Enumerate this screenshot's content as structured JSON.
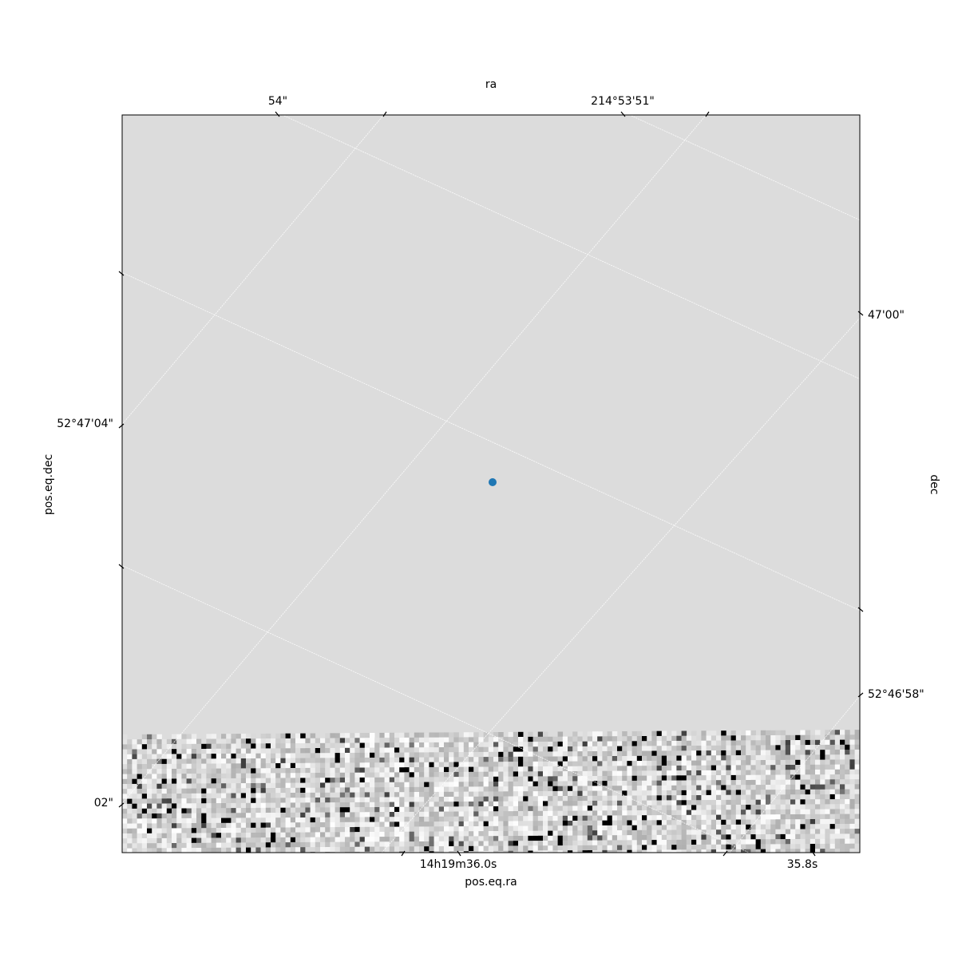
{
  "chart_data": {
    "type": "scatter",
    "title": "",
    "frame": "wcs-image",
    "bottom_axis": {
      "label": "pos.eq.ra",
      "ticks": [
        "14h19m36.0s",
        "35.8s"
      ]
    },
    "left_axis": {
      "label": "pos.eq.dec",
      "ticks": [
        "52°47'04\"",
        "02\""
      ]
    },
    "top_axis": {
      "label": "ra",
      "ticks": [
        "54\"",
        "214°53'51\""
      ]
    },
    "right_axis": {
      "label": "dec",
      "ticks": [
        "47'00\"",
        "52°46'58\""
      ]
    },
    "series": [
      {
        "marker": "circle",
        "points": [
          {
            "ra": "14h19m35.93s",
            "dec": "52°47'03.0\""
          }
        ]
      }
    ],
    "grid": true,
    "image": {
      "colormap": "gray_r",
      "blank_fill": "#dcdcdc"
    }
  },
  "colors": {
    "marker": "#1f77b4",
    "axes": "#000000",
    "grid": "#ffffff",
    "blank": "#dcdcdc"
  }
}
